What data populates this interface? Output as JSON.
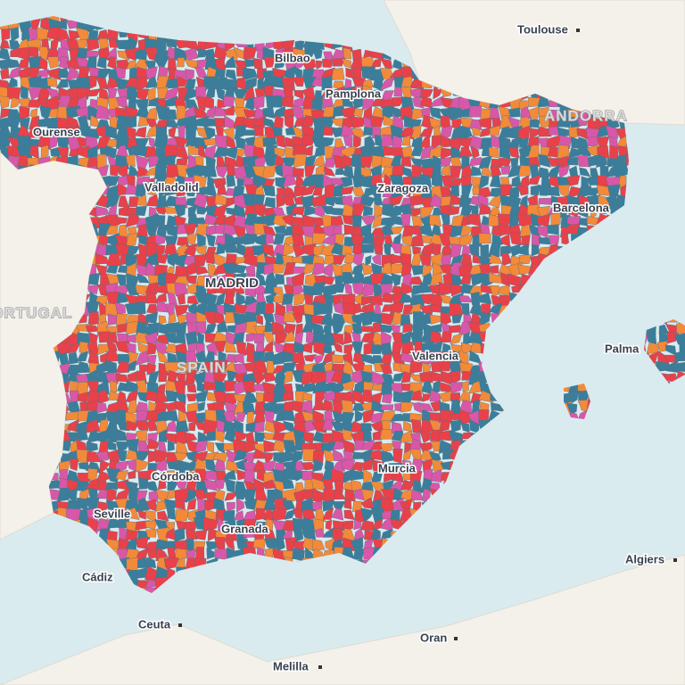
{
  "cities": [
    "Toulouse",
    "Bilbao",
    "Pamplona",
    "Ourense",
    "Valladolid",
    "Zaragoza",
    "Barcelona",
    "MADRID",
    "Valencia",
    "Palma",
    "Murcia",
    "Córdoba",
    "Seville",
    "Granada",
    "Cádiz",
    "Algiers",
    "Ceuta",
    "Oran",
    "Melilla"
  ],
  "countries": [
    "ANDORRA",
    "PORTUGAL",
    "SPAIN"
  ]
}
